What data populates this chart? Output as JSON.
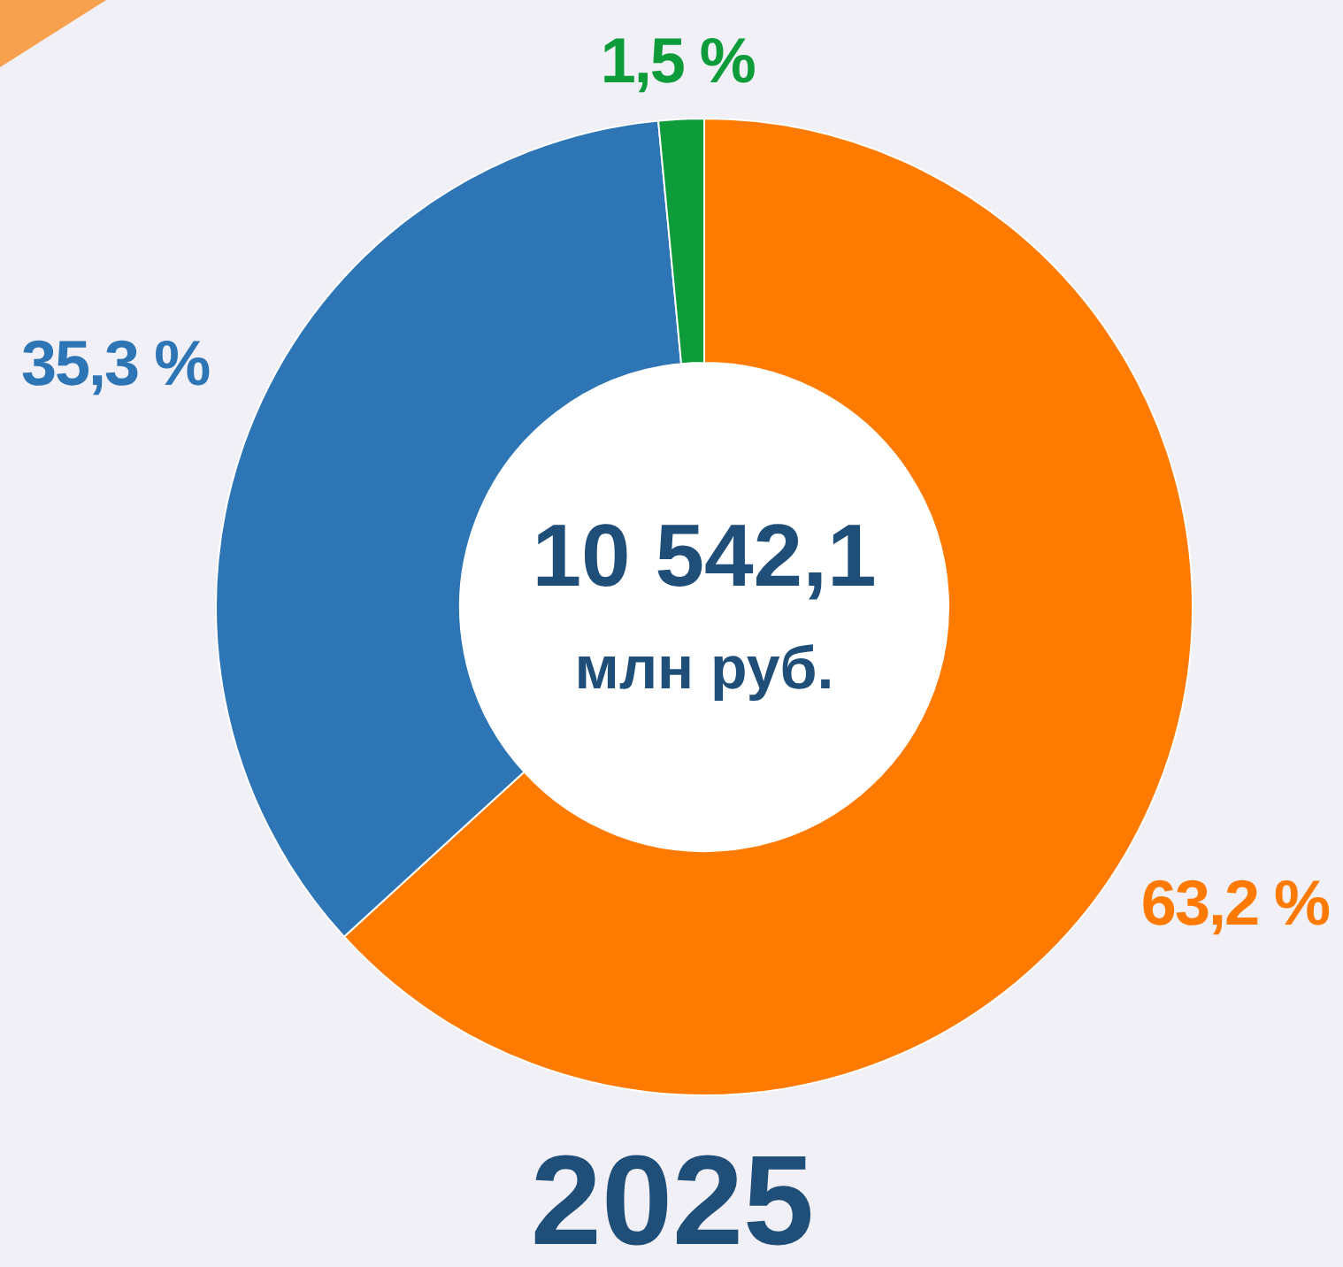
{
  "chart_data": {
    "type": "donut",
    "title": "2025",
    "categories": [
      null,
      null,
      null
    ],
    "values": [
      63.2,
      35.3,
      1.5
    ],
    "colors": [
      "#ff7a00",
      "#2e75b6",
      "#0e9c3a"
    ],
    "value_labels": [
      "63,2 %",
      "35,3 %",
      "1,5 %"
    ],
    "annotations": [
      "10 542,1",
      "млн руб."
    ]
  }
}
